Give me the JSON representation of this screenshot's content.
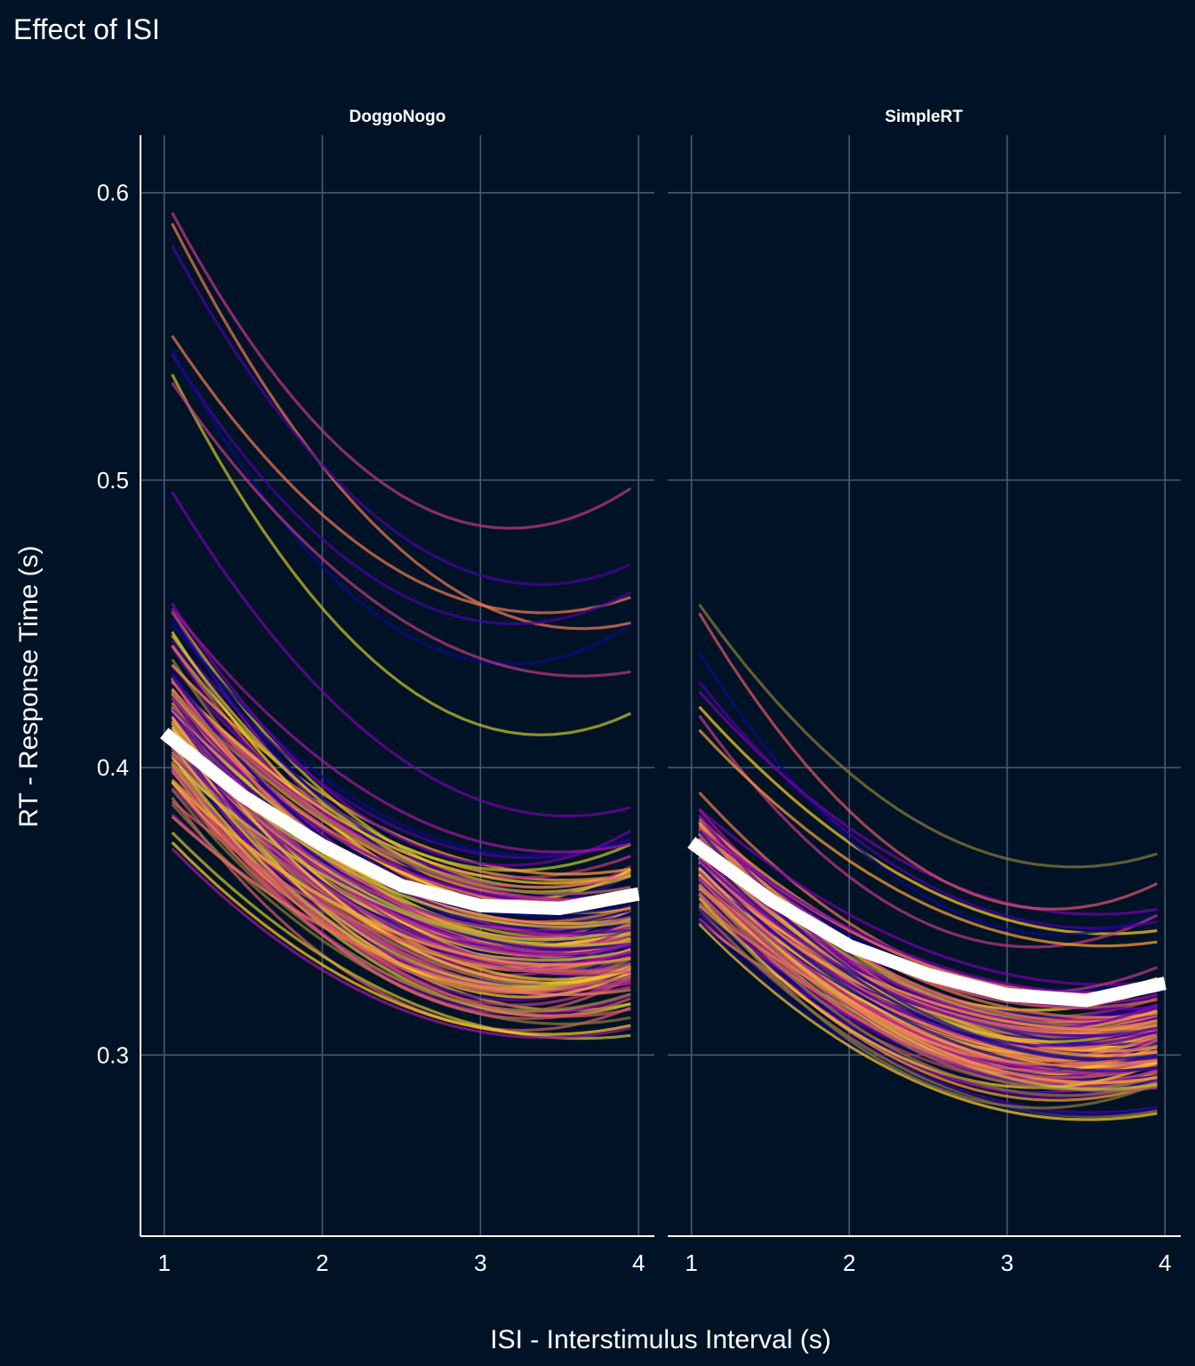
{
  "chart_data": {
    "type": "line",
    "title": "Effect of ISI",
    "xlabel": "ISI - Interstimulus Interval (s)",
    "ylabel": "RT - Response Time (s)",
    "xlim": [
      0.85,
      4.1
    ],
    "ylim": [
      0.237,
      0.62
    ],
    "x_ticks": [
      "1",
      "2",
      "3",
      "4"
    ],
    "y_ticks": [
      "0.3",
      "0.4",
      "0.5",
      "0.6"
    ],
    "grid": true,
    "legend": "none",
    "background": "#001326",
    "grid_color": "#4a5a70",
    "overall_color": "#ffffff",
    "palette": [
      "#0d0887",
      "#46039f",
      "#7201a8",
      "#9c179e",
      "#bd3786",
      "#d8576b",
      "#ed7953",
      "#fb9f3a",
      "#fdca26",
      "#c9c22d",
      "#8a7a3a"
    ],
    "panels": [
      {
        "name": "DoggoNogo",
        "x_range": [
          1.05,
          3.95
        ],
        "n_participants": 140,
        "baseline_rt_range": [
          0.3,
          0.6
        ],
        "curve_shape": "quadratic decrease, minimum near ISI 3.2-3.4 s",
        "overall": [
          {
            "x": 1.0,
            "y": 0.412
          },
          {
            "x": 1.5,
            "y": 0.39
          },
          {
            "x": 2.0,
            "y": 0.373
          },
          {
            "x": 2.5,
            "y": 0.359
          },
          {
            "x": 3.0,
            "y": 0.352
          },
          {
            "x": 3.5,
            "y": 0.351
          },
          {
            "x": 4.0,
            "y": 0.356
          }
        ]
      },
      {
        "name": "SimpleRT",
        "x_range": [
          1.05,
          3.95
        ],
        "n_participants": 140,
        "baseline_rt_range": [
          0.3,
          0.47
        ],
        "curve_shape": "quadratic decrease, minimum near ISI 3.2-3.4 s",
        "overall": [
          {
            "x": 1.0,
            "y": 0.374
          },
          {
            "x": 1.5,
            "y": 0.354
          },
          {
            "x": 2.0,
            "y": 0.338
          },
          {
            "x": 2.5,
            "y": 0.328
          },
          {
            "x": 3.0,
            "y": 0.321
          },
          {
            "x": 3.5,
            "y": 0.319
          },
          {
            "x": 4.0,
            "y": 0.325
          }
        ]
      }
    ]
  }
}
